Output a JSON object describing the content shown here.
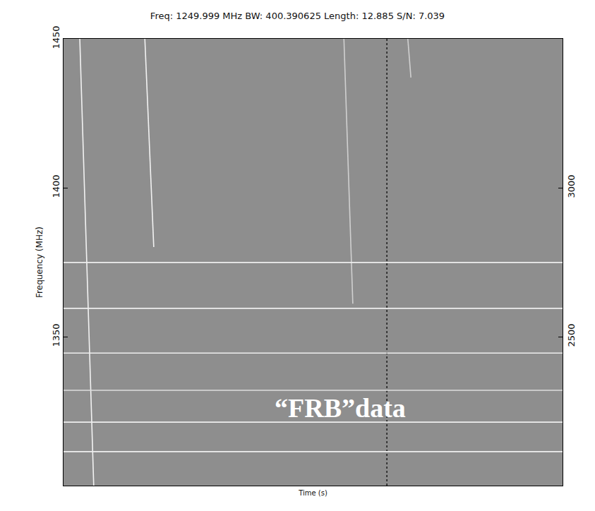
{
  "chart_data": {
    "type": "spectrogram",
    "title": "Freq: 1249.999 MHz BW: 400.390625 Length: 12.885 S/N: 7.039",
    "x_label": "Time (s)",
    "y_label": "Frequency (MHz)",
    "xlim": [
      0,
      12.885
    ],
    "xticks": [],
    "ylim": [
      1300,
      1450
    ],
    "yticks": [
      1350,
      1400,
      1450
    ],
    "y2lim": [
      2000,
      3500
    ],
    "y2ticks": [
      2500,
      3000
    ],
    "tick_labels": "y",
    "grid": false,
    "annotations": [
      {
        "text": "“FRB”data",
        "x": 7.15,
        "y": 1326
      }
    ],
    "series": [
      {
        "type": "line",
        "color": "#f2f2f2",
        "line_style": "solid",
        "x": [
          0.42,
          0.78
        ],
        "y": [
          1450,
          1300
        ]
      },
      {
        "type": "line",
        "color": "#f2f2f2",
        "line_style": "solid",
        "x": [
          2.1,
          2.33
        ],
        "y": [
          1450,
          1380.1
        ]
      },
      {
        "type": "line",
        "color": "#d0d0d0",
        "line_style": "solid",
        "x": [
          7.24,
          7.47
        ],
        "y": [
          1450,
          1361.1
        ]
      },
      {
        "type": "line",
        "color": "#d0d0d0",
        "line_style": "solid",
        "x": [
          8.89,
          8.97
        ],
        "y": [
          1450,
          1437
        ]
      },
      {
        "type": "line",
        "color": "#222222",
        "line_style": "dot",
        "x": [
          8.35,
          8.35
        ],
        "y": [
          1450,
          1300
        ]
      },
      {
        "type": "line",
        "color": "#eeeeee",
        "line_style": "solid",
        "x": [
          0,
          12.885
        ],
        "y": [
          1374.9,
          1374.9
        ]
      },
      {
        "type": "line",
        "color": "#eeeeee",
        "line_style": "solid",
        "x": [
          0,
          12.885
        ],
        "y": [
          1359.5,
          1359.5
        ]
      },
      {
        "type": "line",
        "color": "#eeeeee",
        "line_style": "solid",
        "x": [
          0,
          12.885
        ],
        "y": [
          1344.5,
          1344.5
        ]
      },
      {
        "type": "line",
        "color": "#dddddd",
        "line_style": "solid",
        "x": [
          0,
          12.885
        ],
        "y": [
          1332,
          1332
        ]
      },
      {
        "type": "line",
        "color": "#eeeeee",
        "line_style": "solid",
        "x": [
          0,
          12.885
        ],
        "y": [
          1321.3,
          1321.3
        ]
      },
      {
        "type": "line",
        "color": "#eeeeee",
        "line_style": "solid",
        "x": [
          0,
          12.885
        ],
        "y": [
          1311.4,
          1311.4
        ]
      }
    ]
  }
}
